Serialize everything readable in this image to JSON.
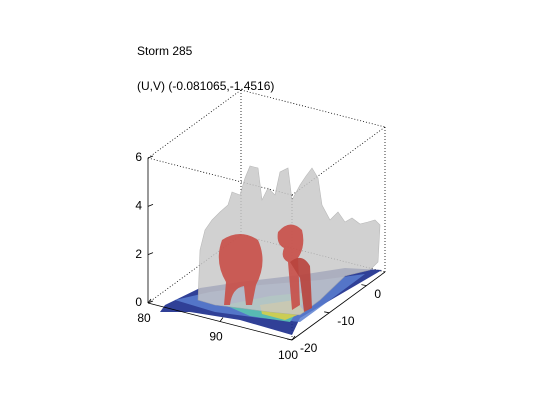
{
  "chart_data": {
    "type": "isosurface3d",
    "title": "Storm 285",
    "subtitle": "(U,V) (-0.081065,-1.4516)",
    "xlim": [
      80,
      100
    ],
    "xticks": [
      80,
      90,
      100
    ],
    "ylim": [
      -20,
      5
    ],
    "yticks": [
      -20,
      -10,
      0
    ],
    "zlim": [
      0,
      6
    ],
    "zticks": [
      0,
      2,
      4,
      6
    ]
  }
}
